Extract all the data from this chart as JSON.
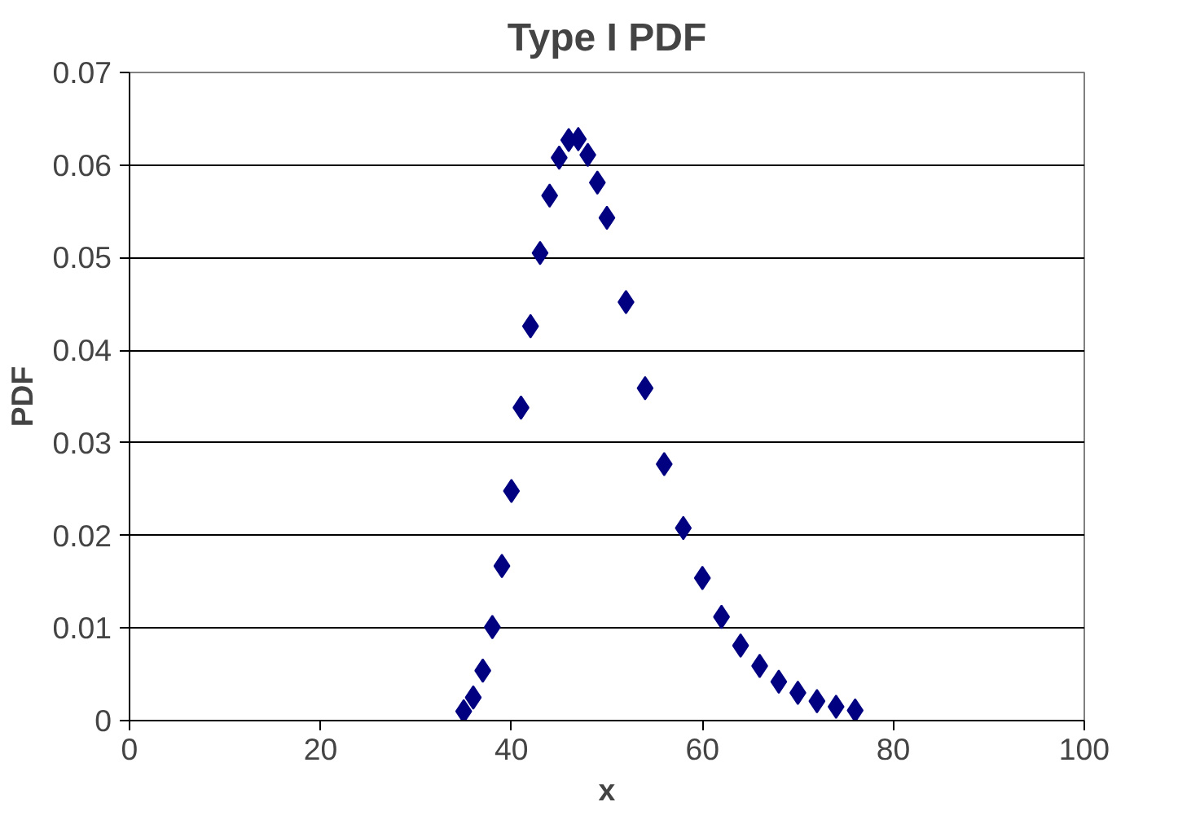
{
  "chart_data": {
    "type": "scatter",
    "title": "Type I PDF",
    "xlabel": "x",
    "ylabel": "PDF",
    "x": [
      35,
      36,
      37,
      38,
      39,
      40,
      41,
      42,
      43,
      44,
      45,
      46,
      47,
      48,
      49,
      50,
      52,
      54,
      56,
      58,
      60,
      62,
      64,
      66,
      68,
      70,
      72,
      74,
      76
    ],
    "series": [
      {
        "color": "#000080",
        "values": [
          0.001,
          0.0025,
          0.0054,
          0.0101,
          0.0167,
          0.0248,
          0.0338,
          0.0426,
          0.0505,
          0.0567,
          0.0608,
          0.0627,
          0.0628,
          0.0611,
          0.0581,
          0.0543,
          0.0452,
          0.0359,
          0.0277,
          0.0208,
          0.0154,
          0.0112,
          0.0081,
          0.0059,
          0.0042,
          0.003,
          0.0021,
          0.0015,
          0.0011
        ]
      }
    ],
    "xlim": [
      0,
      100
    ],
    "xticks": [
      0,
      20,
      40,
      60,
      80,
      100
    ],
    "ylim": [
      0,
      0.07
    ],
    "yticks": [
      0,
      0.01,
      0.02,
      0.03,
      0.04,
      0.05,
      0.06,
      0.07
    ],
    "grid": "y",
    "marker": "diamond"
  }
}
